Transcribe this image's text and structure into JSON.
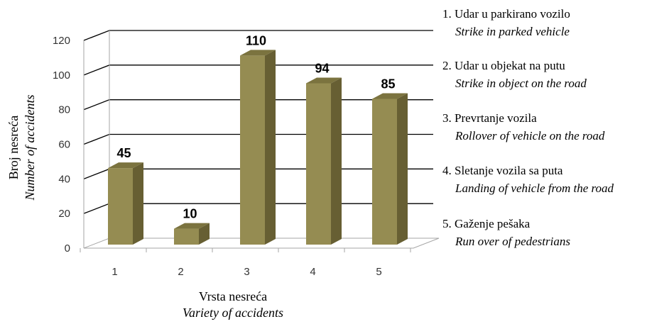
{
  "chart_data": {
    "type": "bar",
    "categories": [
      "1",
      "2",
      "3",
      "4",
      "5"
    ],
    "values": [
      45,
      10,
      110,
      94,
      85
    ],
    "data_labels": [
      "45",
      "10",
      "110",
      "94",
      "85"
    ],
    "ylim": [
      0,
      120
    ],
    "yticks": [
      "0",
      "20",
      "40",
      "60",
      "80",
      "100",
      "120"
    ],
    "ylabel": "Broj nesreća",
    "ylabel_en": "Number of accidents",
    "xlabel": "Vrsta nesreća",
    "xlabel_en": "Variety of accidents",
    "grid": true,
    "legend_position": "right",
    "legend": [
      {
        "label": "1. Udar u parkirano vozilo",
        "label_en": "Strike in parked vehicle"
      },
      {
        "label": "2. Udar u objekat na putu",
        "label_en": "Strike in object on the road"
      },
      {
        "label": "3. Prevrtanje vozila",
        "label_en": "Rollover of vehicle on the road"
      },
      {
        "label": "4. Sletanje vozila sa puta",
        "label_en": "Landing of vehicle from the road"
      },
      {
        "label": "5. Gaženje pešaka",
        "label_en": "Run over of pedestrians"
      }
    ],
    "colors": {
      "bar_front": "#958C52",
      "bar_side": "#675F33",
      "bar_top": "#7B733F",
      "grid": "#000000",
      "floor": "#a6a6a6"
    }
  }
}
